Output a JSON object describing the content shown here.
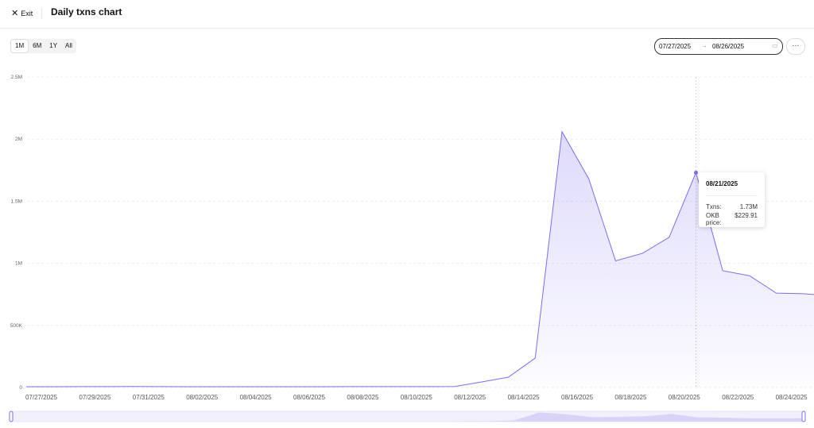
{
  "header": {
    "exit": "Exit",
    "title": "Daily txns chart"
  },
  "controls": {
    "ranges": [
      "1M",
      "6M",
      "1Y",
      "All"
    ],
    "date_from": "07/27/2025",
    "date_to": "08/26/2025"
  },
  "tooltip": {
    "date": "08/21/2025",
    "rows": [
      {
        "label": "Txns:",
        "value": "1.73M"
      },
      {
        "label": "OKB price:",
        "value": "$229.91"
      }
    ]
  },
  "chart_data": {
    "type": "area",
    "color": "#7b6cf0",
    "x": [
      "07/27/2025",
      "07/28/2025",
      "07/29/2025",
      "07/30/2025",
      "07/31/2025",
      "08/01/2025",
      "08/02/2025",
      "08/03/2025",
      "08/04/2025",
      "08/05/2025",
      "08/06/2025",
      "08/07/2025",
      "08/08/2025",
      "08/09/2025",
      "08/10/2025",
      "08/11/2025",
      "08/12/2025",
      "08/13/2025",
      "08/14/2025",
      "08/15/2025",
      "08/16/2025",
      "08/17/2025",
      "08/18/2025",
      "08/19/2025",
      "08/20/2025",
      "08/21/2025",
      "08/22/2025",
      "08/23/2025",
      "08/24/2025",
      "08/25/2025",
      "08/26/2025"
    ],
    "xticks": [
      "07/27/2025",
      "07/29/2025",
      "07/31/2025",
      "08/02/2025",
      "08/04/2025",
      "08/06/2025",
      "08/08/2025",
      "08/10/2025",
      "08/12/2025",
      "08/14/2025",
      "08/16/2025",
      "08/18/2025",
      "08/20/2025",
      "08/22/2025",
      "08/24/2025"
    ],
    "series": [
      {
        "name": "Txns",
        "color": "#7b6cf0",
        "values": [
          6000,
          6000,
          7000,
          7000,
          8000,
          7000,
          6000,
          6000,
          6000,
          6000,
          6000,
          6000,
          7000,
          7000,
          7000,
          7000,
          8000,
          45000,
          83000,
          237000,
          2060000,
          1680000,
          1020000,
          1080000,
          1210000,
          1730000,
          940000,
          900000,
          760000,
          755000,
          740000
        ]
      }
    ],
    "ylim": [
      0,
      2500000
    ],
    "yticks": [
      0,
      {
        "value": 500000,
        "label": "500K"
      },
      {
        "value": 1000000,
        "label": "1M"
      },
      {
        "value": 1500000,
        "label": "1.5M"
      },
      {
        "value": 2000000,
        "label": "2M"
      },
      {
        "value": 2500000,
        "label": "2.5M"
      }
    ],
    "grid": true
  }
}
